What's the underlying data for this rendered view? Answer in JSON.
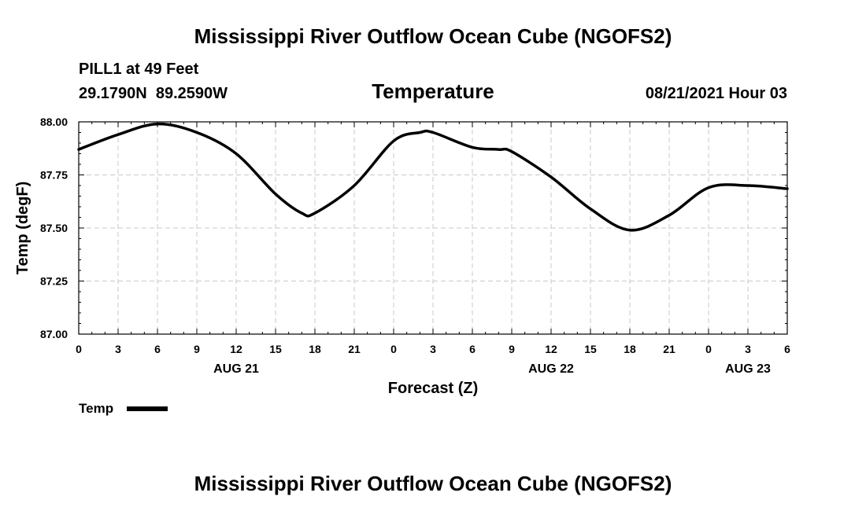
{
  "header": {
    "title": "Mississippi River Outflow Ocean Cube (NGOFS2)",
    "station": "PILL1 at 49 Feet",
    "coords": "29.1790N  89.2590W",
    "variable": "Temperature",
    "date": "08/21/2021 Hour 03"
  },
  "footer": {
    "title": "Mississippi River Outflow Ocean Cube (NGOFS2)"
  },
  "legend": {
    "label": "Temp"
  },
  "chart_data": {
    "type": "line",
    "title": "Temperature",
    "xlabel": "Forecast (Z)",
    "ylabel": "Temp (degF)",
    "ylim": [
      87.0,
      88.0
    ],
    "xlim": [
      0,
      54
    ],
    "grid": true,
    "y_ticks": [
      "87.00",
      "87.25",
      "87.50",
      "87.75",
      "88.00"
    ],
    "y_tick_values": [
      87.0,
      87.25,
      87.5,
      87.75,
      88.0
    ],
    "x_tick_labels": [
      "0",
      "3",
      "6",
      "9",
      "12",
      "15",
      "18",
      "21",
      "0",
      "3",
      "6",
      "9",
      "12",
      "15",
      "18",
      "21",
      "0",
      "3",
      "6"
    ],
    "day_labels": [
      {
        "label": "AUG 21",
        "hour": 12
      },
      {
        "label": "AUG 22",
        "hour": 36
      },
      {
        "label": "AUG 23",
        "hour": 51
      }
    ],
    "series": [
      {
        "name": "Temp",
        "color": "#000000",
        "x": [
          0,
          3,
          6,
          9,
          12,
          15,
          17,
          18,
          21,
          24,
          26,
          27,
          30,
          32,
          33,
          36,
          39,
          42,
          45,
          48,
          51,
          54
        ],
        "values": [
          87.87,
          87.94,
          87.99,
          87.95,
          87.85,
          87.66,
          87.57,
          87.57,
          87.7,
          87.91,
          87.95,
          87.95,
          87.88,
          87.87,
          87.86,
          87.74,
          87.59,
          87.49,
          87.56,
          87.69,
          87.7,
          87.685
        ]
      }
    ]
  }
}
